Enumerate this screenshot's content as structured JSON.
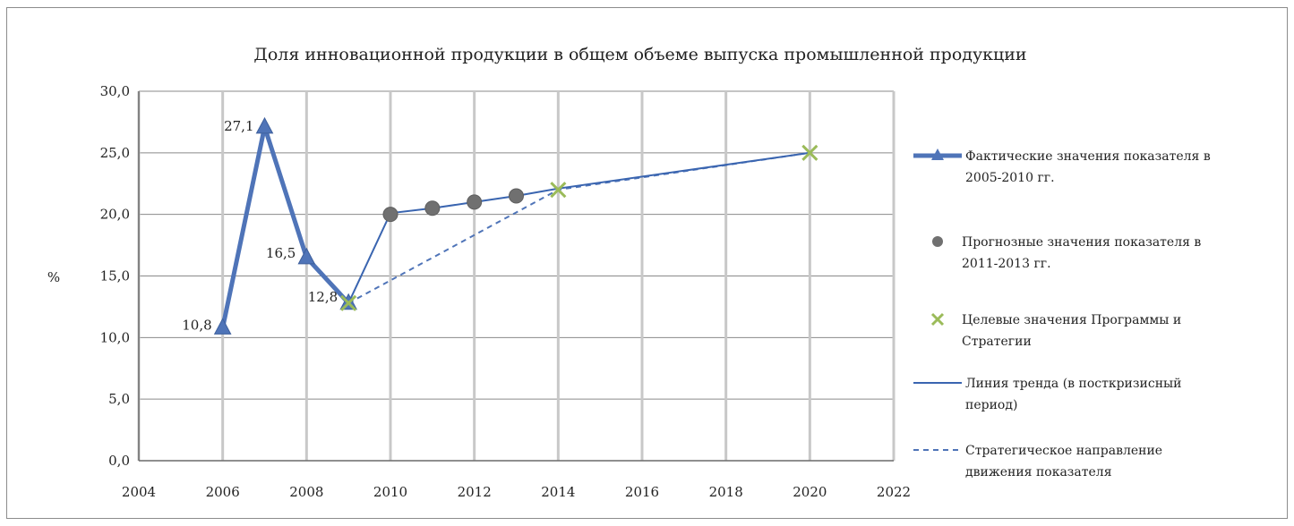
{
  "chart_data": {
    "type": "line",
    "title": "Доля инновационной продукции в общем объеме выпуска промышленной продукции",
    "ylabel": "%",
    "xlabel": "",
    "xlim": [
      2004,
      2022
    ],
    "ylim": [
      0,
      30
    ],
    "x_ticks": [
      "2004",
      "2006",
      "2008",
      "2010",
      "2012",
      "2014",
      "2016",
      "2018",
      "2020",
      "2022"
    ],
    "y_ticks": [
      "0,0",
      "5,0",
      "10,0",
      "15,0",
      "20,0",
      "25,0",
      "30,0"
    ],
    "grid": "vertical and horizontal major gridlines",
    "legend_position": "right",
    "series": [
      {
        "name": "Фактические значения показателя в 2005-2010 гг.",
        "legend_lines": [
          "Фактические значения показателя в",
          "2005-2010 гг."
        ],
        "style": "thick line with triangle markers",
        "color": "#4f74b8",
        "x": [
          2006,
          2007,
          2008,
          2009
        ],
        "y": [
          10.8,
          27.1,
          16.5,
          12.8
        ],
        "labels": [
          "10,8",
          "27,1",
          "16,5",
          "12,8"
        ]
      },
      {
        "name": "Прогнозные значения показателя в 2011-2013 гг.",
        "legend_lines": [
          "Прогнозные значения показателя в",
          "2011-2013 гг."
        ],
        "style": "circle markers",
        "color": "#707070",
        "x": [
          2010,
          2011,
          2012,
          2013
        ],
        "y": [
          20.0,
          20.5,
          21.0,
          21.5
        ]
      },
      {
        "name": "Целевые значения Программы и Стратегии",
        "legend_lines": [
          "Целевые значения Программы и",
          "Стратегии"
        ],
        "style": "x markers",
        "color": "#9bbb59",
        "x": [
          2009,
          2014,
          2020
        ],
        "y": [
          12.8,
          22.0,
          25.0
        ]
      },
      {
        "name": "Линия тренда (в посткризисный период)",
        "legend_lines": [
          "Линия тренда (в посткризисный",
          "период)"
        ],
        "style": "thin solid line",
        "color": "#3a65b0",
        "x": [
          2009,
          2010,
          2011,
          2012,
          2013,
          2014,
          2020
        ],
        "y": [
          12.8,
          20.1,
          20.5,
          21.0,
          21.5,
          22.1,
          25.0
        ]
      },
      {
        "name": "Стратегическое направление движения показателя",
        "legend_lines": [
          "Стратегическое направление",
          "движения показателя"
        ],
        "style": "dashed line",
        "color": "#4f74b8",
        "x": [
          2009,
          2014,
          2020
        ],
        "y": [
          12.8,
          22.0,
          25.0
        ]
      }
    ]
  }
}
